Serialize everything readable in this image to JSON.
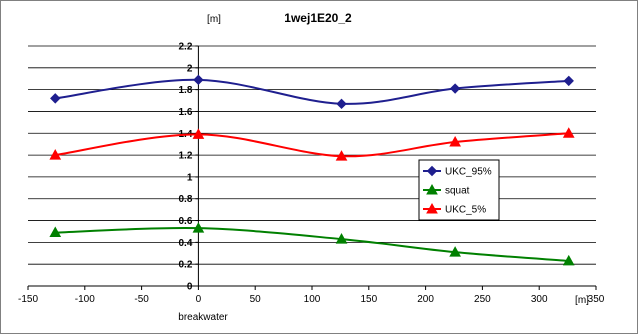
{
  "chart_data": {
    "type": "line",
    "title": "1wej1E20_2",
    "ylabel": "[m]",
    "xlabel": "[m]",
    "x_annotation": "breakwater",
    "xlim": [
      -150,
      350
    ],
    "ylim": [
      0,
      2.2
    ],
    "x_ticks": [
      "-150",
      "-100",
      "-50",
      "0",
      "50",
      "100",
      "150",
      "200",
      "250",
      "300",
      "350"
    ],
    "y_ticks": [
      "0",
      "0.2",
      "0.4",
      "0.6",
      "0.8",
      "1",
      "1.2",
      "1.4",
      "1.6",
      "1.8",
      "2",
      "2.2"
    ],
    "grid": "horizontal",
    "legend_position": "right",
    "series": [
      {
        "name": "UKC_95%",
        "color": "#1f1f8f",
        "marker": "diamond",
        "points": [
          [
            -126,
            1.72
          ],
          [
            0,
            1.89
          ],
          [
            126,
            1.67
          ],
          [
            226,
            1.81
          ],
          [
            326,
            1.88
          ]
        ]
      },
      {
        "name": "squat",
        "color": "#008000",
        "marker": "triangle",
        "points": [
          [
            -126,
            0.49
          ],
          [
            0,
            0.53
          ],
          [
            126,
            0.43
          ],
          [
            226,
            0.31
          ],
          [
            326,
            0.23
          ]
        ]
      },
      {
        "name": "UKC_5%",
        "color": "#ff0000",
        "marker": "triangle",
        "points": [
          [
            -126,
            1.2
          ],
          [
            0,
            1.39
          ],
          [
            126,
            1.19
          ],
          [
            226,
            1.32
          ],
          [
            326,
            1.4
          ]
        ]
      }
    ]
  }
}
